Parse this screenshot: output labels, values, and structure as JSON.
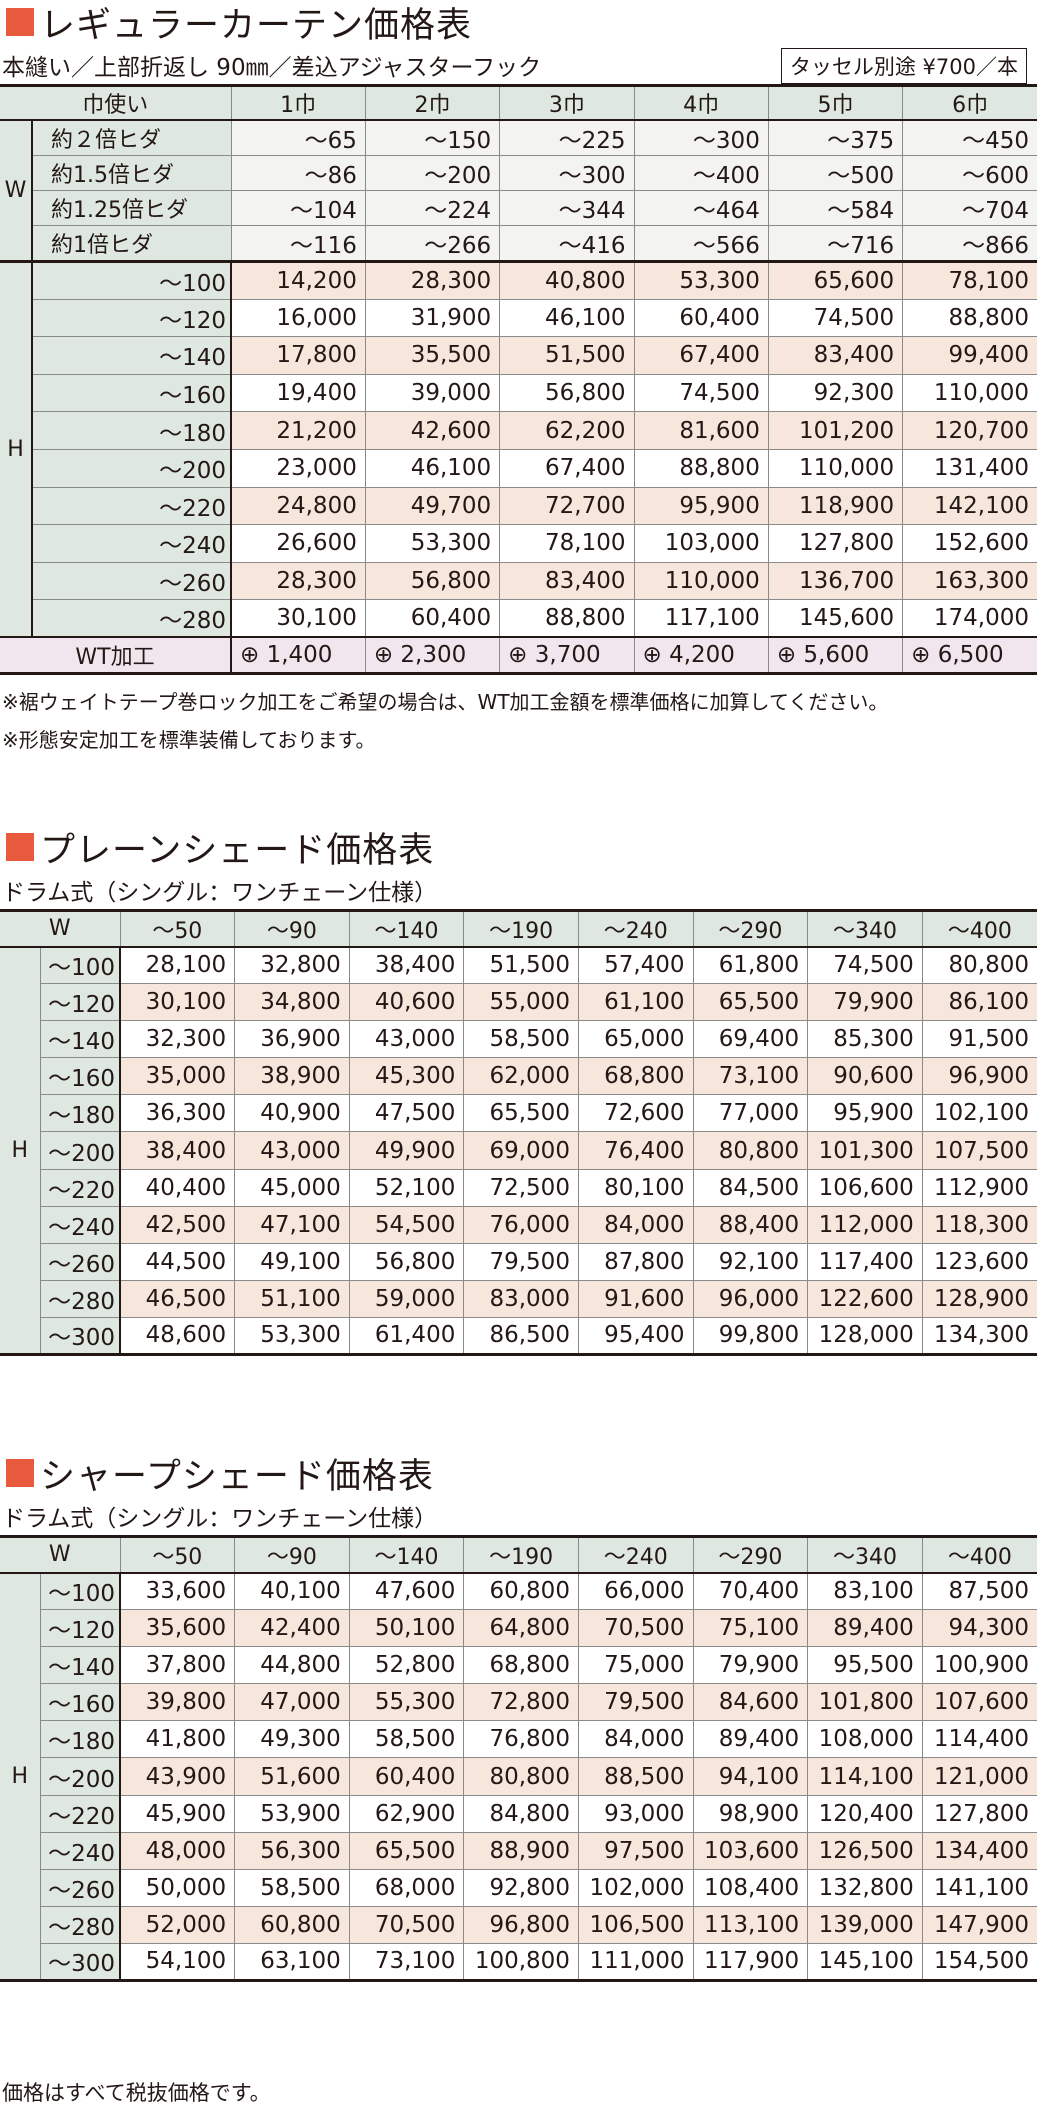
{
  "curtain": {
    "title": "レギュラーカーテン価格表",
    "subtitle": "本縫い／上部折返し 90㎜／差込アジャスターフック",
    "tassel_note": "タッセル別途 ¥700／本",
    "header_label": "巾使い",
    "width_cols": [
      "1巾",
      "2巾",
      "3巾",
      "4巾",
      "5巾",
      "6巾"
    ],
    "w_axis": "W",
    "h_axis": "H",
    "w_rows": [
      {
        "label": "約２倍ヒダ",
        "values": [
          "～65",
          "～150",
          "～225",
          "～300",
          "～375",
          "～450"
        ]
      },
      {
        "label": "約1.5倍ヒダ",
        "values": [
          "～86",
          "～200",
          "～300",
          "～400",
          "～500",
          "～600"
        ]
      },
      {
        "label": "約1.25倍ヒダ",
        "values": [
          "～104",
          "～224",
          "～344",
          "～464",
          "～584",
          "～704"
        ]
      },
      {
        "label": "約1倍ヒダ",
        "values": [
          "～116",
          "～266",
          "～416",
          "～566",
          "～716",
          "～866"
        ]
      }
    ],
    "h_rows": [
      {
        "label": "～100",
        "values": [
          "14,200",
          "28,300",
          "40,800",
          "53,300",
          "65,600",
          "78,100"
        ]
      },
      {
        "label": "～120",
        "values": [
          "16,000",
          "31,900",
          "46,100",
          "60,400",
          "74,500",
          "88,800"
        ]
      },
      {
        "label": "～140",
        "values": [
          "17,800",
          "35,500",
          "51,500",
          "67,400",
          "83,400",
          "99,400"
        ]
      },
      {
        "label": "～160",
        "values": [
          "19,400",
          "39,000",
          "56,800",
          "74,500",
          "92,300",
          "110,000"
        ]
      },
      {
        "label": "～180",
        "values": [
          "21,200",
          "42,600",
          "62,200",
          "81,600",
          "101,200",
          "120,700"
        ]
      },
      {
        "label": "～200",
        "values": [
          "23,000",
          "46,100",
          "67,400",
          "88,800",
          "110,000",
          "131,400"
        ]
      },
      {
        "label": "～220",
        "values": [
          "24,800",
          "49,700",
          "72,700",
          "95,900",
          "118,900",
          "142,100"
        ]
      },
      {
        "label": "～240",
        "values": [
          "26,600",
          "53,300",
          "78,100",
          "103,000",
          "127,800",
          "152,600"
        ]
      },
      {
        "label": "～260",
        "values": [
          "28,300",
          "56,800",
          "83,400",
          "110,000",
          "136,700",
          "163,300"
        ]
      },
      {
        "label": "～280",
        "values": [
          "30,100",
          "60,400",
          "88,800",
          "117,100",
          "145,600",
          "174,000"
        ]
      }
    ],
    "wt_label": "WT加工",
    "wt_values": [
      "⊕ 1,400",
      "⊕ 2,300",
      "⊕ 3,700",
      "⊕ 4,200",
      "⊕ 5,600",
      "⊕ 6,500"
    ],
    "notes": [
      "※裾ウェイトテープ巻ロック加工をご希望の場合は、WT加工金額を標準価格に加算してください。",
      "※形態安定加工を標準装備しております。"
    ]
  },
  "plain_shade": {
    "title": "プレーンシェード価格表",
    "subtitle": "ドラム式（シングル：ワンチェーン仕様）",
    "w_label": "W",
    "h_axis": "H",
    "w_cols": [
      "～50",
      "～90",
      "～140",
      "～190",
      "～240",
      "～290",
      "～340",
      "～400"
    ],
    "rows": [
      {
        "label": "～100",
        "values": [
          "28,100",
          "32,800",
          "38,400",
          "51,500",
          "57,400",
          "61,800",
          "74,500",
          "80,800"
        ]
      },
      {
        "label": "～120",
        "values": [
          "30,100",
          "34,800",
          "40,600",
          "55,000",
          "61,100",
          "65,500",
          "79,900",
          "86,100"
        ]
      },
      {
        "label": "～140",
        "values": [
          "32,300",
          "36,900",
          "43,000",
          "58,500",
          "65,000",
          "69,400",
          "85,300",
          "91,500"
        ]
      },
      {
        "label": "～160",
        "values": [
          "35,000",
          "38,900",
          "45,300",
          "62,000",
          "68,800",
          "73,100",
          "90,600",
          "96,900"
        ]
      },
      {
        "label": "～180",
        "values": [
          "36,300",
          "40,900",
          "47,500",
          "65,500",
          "72,600",
          "77,000",
          "95,900",
          "102,100"
        ]
      },
      {
        "label": "～200",
        "values": [
          "38,400",
          "43,000",
          "49,900",
          "69,000",
          "76,400",
          "80,800",
          "101,300",
          "107,500"
        ]
      },
      {
        "label": "～220",
        "values": [
          "40,400",
          "45,000",
          "52,100",
          "72,500",
          "80,100",
          "84,500",
          "106,600",
          "112,900"
        ]
      },
      {
        "label": "～240",
        "values": [
          "42,500",
          "47,100",
          "54,500",
          "76,000",
          "84,000",
          "88,400",
          "112,000",
          "118,300"
        ]
      },
      {
        "label": "～260",
        "values": [
          "44,500",
          "49,100",
          "56,800",
          "79,500",
          "87,800",
          "92,100",
          "117,400",
          "123,600"
        ]
      },
      {
        "label": "～280",
        "values": [
          "46,500",
          "51,100",
          "59,000",
          "83,000",
          "91,600",
          "96,000",
          "122,600",
          "128,900"
        ]
      },
      {
        "label": "～300",
        "values": [
          "48,600",
          "53,300",
          "61,400",
          "86,500",
          "95,400",
          "99,800",
          "128,000",
          "134,300"
        ]
      }
    ]
  },
  "sharp_shade": {
    "title": "シャープシェード価格表",
    "subtitle": "ドラム式（シングル：ワンチェーン仕様）",
    "w_label": "W",
    "h_axis": "H",
    "w_cols": [
      "～50",
      "～90",
      "～140",
      "～190",
      "～240",
      "～290",
      "～340",
      "～400"
    ],
    "rows": [
      {
        "label": "～100",
        "values": [
          "33,600",
          "40,100",
          "47,600",
          "60,800",
          "66,000",
          "70,400",
          "83,100",
          "87,500"
        ]
      },
      {
        "label": "～120",
        "values": [
          "35,600",
          "42,400",
          "50,100",
          "64,800",
          "70,500",
          "75,100",
          "89,400",
          "94,300"
        ]
      },
      {
        "label": "～140",
        "values": [
          "37,800",
          "44,800",
          "52,800",
          "68,800",
          "75,000",
          "79,900",
          "95,500",
          "100,900"
        ]
      },
      {
        "label": "～160",
        "values": [
          "39,800",
          "47,000",
          "55,300",
          "72,800",
          "79,500",
          "84,600",
          "101,800",
          "107,600"
        ]
      },
      {
        "label": "～180",
        "values": [
          "41,800",
          "49,300",
          "58,500",
          "76,800",
          "84,000",
          "89,400",
          "108,000",
          "114,400"
        ]
      },
      {
        "label": "～200",
        "values": [
          "43,900",
          "51,600",
          "60,400",
          "80,800",
          "88,500",
          "94,100",
          "114,100",
          "121,000"
        ]
      },
      {
        "label": "～220",
        "values": [
          "45,900",
          "53,900",
          "62,900",
          "84,800",
          "93,000",
          "98,900",
          "120,400",
          "127,800"
        ]
      },
      {
        "label": "～240",
        "values": [
          "48,000",
          "56,300",
          "65,500",
          "88,900",
          "97,500",
          "103,600",
          "126,500",
          "134,400"
        ]
      },
      {
        "label": "～260",
        "values": [
          "50,000",
          "58,500",
          "68,000",
          "92,800",
          "102,000",
          "108,400",
          "132,800",
          "141,100"
        ]
      },
      {
        "label": "～280",
        "values": [
          "52,000",
          "60,800",
          "70,500",
          "96,800",
          "106,500",
          "113,100",
          "139,000",
          "147,900"
        ]
      },
      {
        "label": "～300",
        "values": [
          "54,100",
          "63,100",
          "73,100",
          "100,800",
          "111,000",
          "117,900",
          "145,100",
          "154,500"
        ]
      }
    ]
  },
  "footer_note": "価格はすべて税抜価格です。",
  "colors": {
    "accent_square": "#e85a3d",
    "header_bg": "#dfe7e1",
    "alt_row_bg": "#f7e6dc",
    "wt_row_bg": "#f2e6ee"
  }
}
